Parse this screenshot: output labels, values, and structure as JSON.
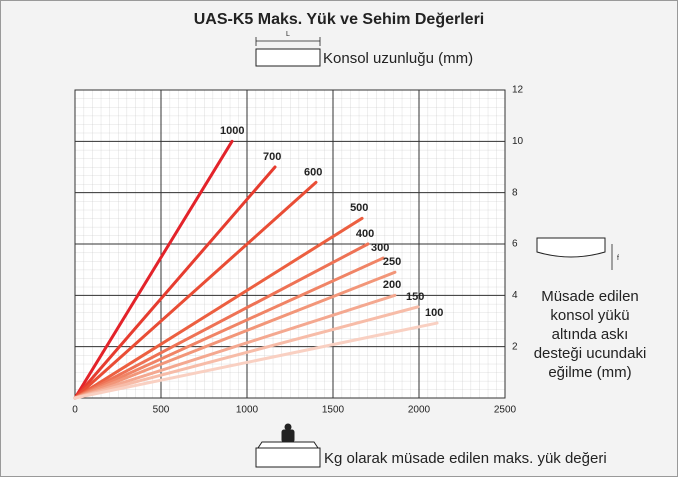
{
  "chart_data": {
    "type": "line",
    "title": "UAS-K5 Maks. Yük ve Sehim Değerleri",
    "top_label": "Konsol uzunluğu (mm)",
    "top_icon_label": "L",
    "x_label": "Kg olarak müsade edilen maks. yük değeri",
    "y_label": [
      "Müsade edilen",
      "konsol yükü",
      "altında askı",
      "desteği ucundaki",
      "eğilme (mm)"
    ],
    "y_icon_label": "f",
    "xlim": [
      0,
      2500
    ],
    "xticks": [
      0,
      500,
      1000,
      1500,
      2000,
      2500
    ],
    "ylim": [
      0,
      12
    ],
    "yticks": [
      2,
      4,
      6,
      8,
      10,
      12
    ],
    "grid": true,
    "series": [
      {
        "name": "1000",
        "color": "#e3232a",
        "x": [
          0,
          913
        ],
        "values": [
          0,
          10
        ]
      },
      {
        "name": "700",
        "color": "#e63c2f",
        "x": [
          0,
          1163
        ],
        "values": [
          0,
          9
        ]
      },
      {
        "name": "600",
        "color": "#e94d35",
        "x": [
          0,
          1401
        ],
        "values": [
          0,
          8.4
        ]
      },
      {
        "name": "500",
        "color": "#ec5f40",
        "x": [
          0,
          1669
        ],
        "values": [
          0,
          7
        ]
      },
      {
        "name": "400",
        "color": "#ee7255",
        "x": [
          0,
          1703
        ],
        "values": [
          0,
          6
        ]
      },
      {
        "name": "300",
        "color": "#f08466",
        "x": [
          0,
          1791
        ],
        "values": [
          0,
          5.45
        ]
      },
      {
        "name": "250",
        "color": "#f29679",
        "x": [
          0,
          1860
        ],
        "values": [
          0,
          4.9
        ]
      },
      {
        "name": "200",
        "color": "#f4a890",
        "x": [
          0,
          1860
        ],
        "values": [
          0,
          4
        ]
      },
      {
        "name": "150",
        "color": "#f7bca8",
        "x": [
          0,
          1994
        ],
        "values": [
          0,
          3.55
        ]
      },
      {
        "name": "100",
        "color": "#f9d0c2",
        "x": [
          0,
          2105
        ],
        "values": [
          0,
          2.92
        ]
      }
    ]
  }
}
